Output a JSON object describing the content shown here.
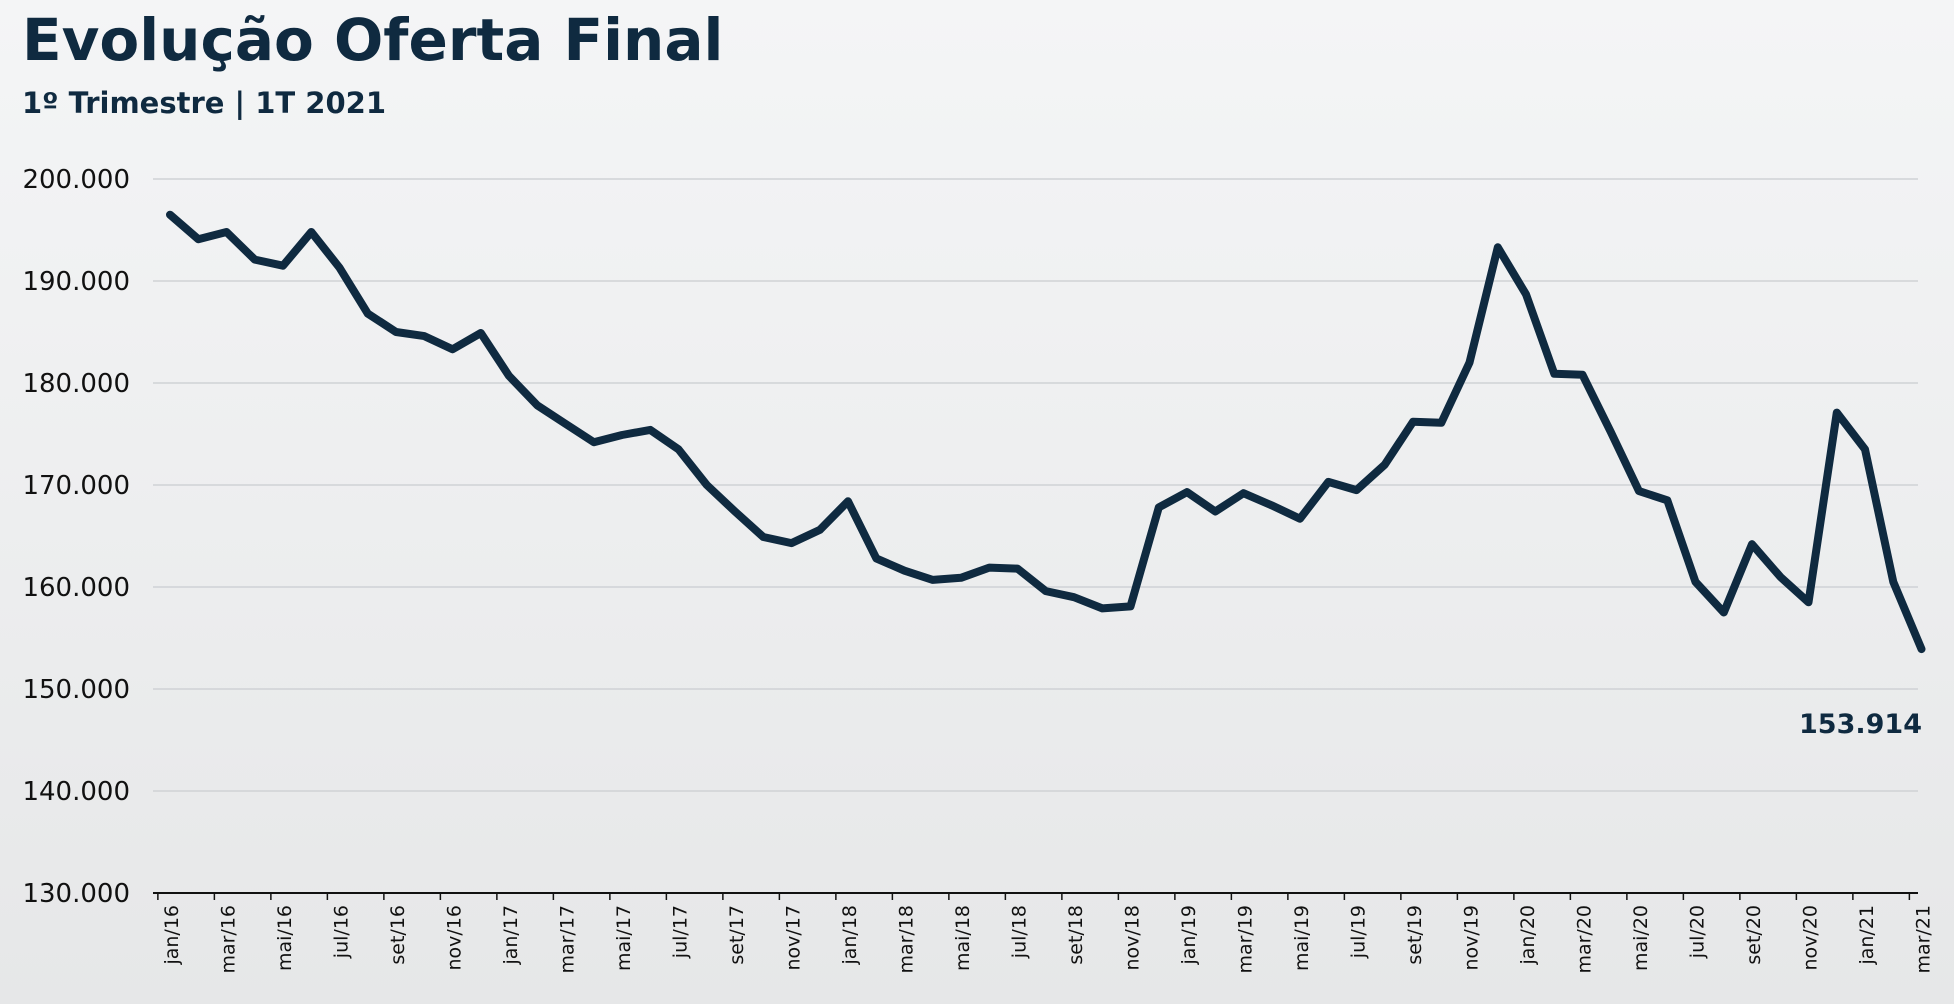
{
  "title": "Evolução Oferta Final",
  "subtitle": "1º Trimestre | 1T 2021",
  "chart_data": {
    "type": "line",
    "title": "Evolução Oferta Final",
    "subtitle": "1º Trimestre | 1T 2021",
    "xlabel": "",
    "ylabel": "",
    "ylim": [
      130000,
      200000
    ],
    "yticks": [
      130000,
      140000,
      150000,
      160000,
      170000,
      180000,
      190000,
      200000
    ],
    "ytick_labels": [
      "130.000",
      "140.000",
      "150.000",
      "160.000",
      "170.000",
      "180.000",
      "190.000",
      "200.000"
    ],
    "grid": true,
    "series_color": "#0f2a40",
    "x": [
      "jan/16",
      "fev/16",
      "mar/16",
      "abr/16",
      "mai/16",
      "jun/16",
      "jul/16",
      "ago/16",
      "set/16",
      "out/16",
      "nov/16",
      "dez/16",
      "jan/17",
      "fev/17",
      "mar/17",
      "abr/17",
      "mai/17",
      "jun/17",
      "jul/17",
      "ago/17",
      "set/17",
      "out/17",
      "nov/17",
      "dez/17",
      "jan/18",
      "fev/18",
      "mar/18",
      "abr/18",
      "mai/18",
      "jun/18",
      "jul/18",
      "ago/18",
      "set/18",
      "out/18",
      "nov/18",
      "dez/18",
      "jan/19",
      "fev/19",
      "mar/19",
      "abr/19",
      "mai/19",
      "jun/19",
      "jul/19",
      "ago/19",
      "set/19",
      "out/19",
      "nov/19",
      "dez/19",
      "jan/20",
      "fev/20",
      "mar/20",
      "abr/20",
      "mai/20",
      "jun/20",
      "jul/20",
      "ago/20",
      "set/20",
      "out/20",
      "nov/20",
      "dez/20",
      "jan/21",
      "fev/21",
      "mar/21"
    ],
    "x_tick_labels": [
      "jan/16",
      "mar/16",
      "mai/16",
      "jul/16",
      "set/16",
      "nov/16",
      "jan/17",
      "mar/17",
      "mai/17",
      "jul/17",
      "set/17",
      "nov/17",
      "jan/18",
      "mar/18",
      "mai/18",
      "jul/18",
      "set/18",
      "nov/18",
      "jan/19",
      "mar/19",
      "mai/19",
      "jul/19",
      "set/19",
      "nov/19",
      "jan/20",
      "mar/20",
      "mai/20",
      "jul/20",
      "set/20",
      "nov/20",
      "jan/21",
      "mar/21"
    ],
    "values": [
      196500,
      194100,
      194800,
      192100,
      191500,
      194800,
      191300,
      186800,
      185000,
      184600,
      183300,
      184900,
      180700,
      177800,
      176000,
      174200,
      174900,
      175400,
      173500,
      170000,
      167400,
      164900,
      164300,
      165600,
      168400,
      162800,
      161600,
      160700,
      160900,
      161900,
      161800,
      159600,
      159000,
      157900,
      158100,
      167800,
      169300,
      167400,
      169200,
      168000,
      166700,
      170300,
      169500,
      172000,
      176200,
      176100,
      182000,
      193300,
      188700,
      180900,
      180800,
      175200,
      169400,
      168500,
      160500,
      157500,
      164200,
      161000,
      158500,
      177100,
      173500,
      160500,
      153914
    ],
    "annotations": [
      {
        "label": "153.914",
        "x": "mar/21",
        "y": 153914
      }
    ]
  }
}
